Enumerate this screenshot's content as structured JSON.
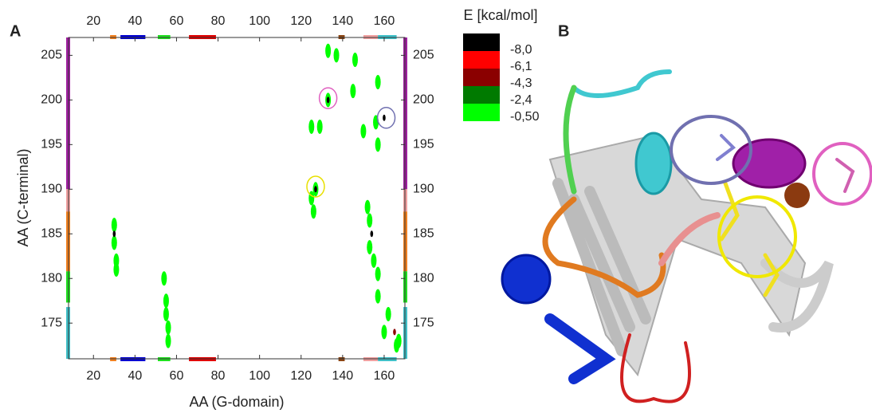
{
  "panel_a": "A",
  "panel_b": "B",
  "chart_data": {
    "type": "scatter",
    "xlabel": "AA (G-domain)",
    "ylabel": "AA (C-terminal)",
    "xlim": [
      8,
      170
    ],
    "ylim": [
      171,
      207
    ],
    "xticks": [
      20,
      40,
      60,
      80,
      100,
      120,
      140,
      160
    ],
    "yticks": [
      175,
      180,
      185,
      190,
      195,
      200,
      205
    ],
    "colorbar": {
      "title": "E [kcal/mol]",
      "levels": [
        {
          "value": -8.0,
          "label": "-8,0",
          "color": "#000000"
        },
        {
          "value": -6.1,
          "label": "-6,1",
          "color": "#ff0000"
        },
        {
          "value": -4.3,
          "label": "-4,3",
          "color": "#8b0000"
        },
        {
          "value": -2.4,
          "label": "-2,4",
          "color": "#007a00"
        },
        {
          "value": -0.5,
          "label": "-0,50",
          "color": "#00ff00"
        }
      ]
    },
    "points": {
      "x": [
        30,
        30,
        31,
        31,
        30,
        54,
        55,
        55,
        56,
        56,
        133,
        137,
        146,
        145,
        157,
        133,
        133,
        125,
        129,
        150,
        156,
        160,
        157,
        127,
        127,
        125,
        126,
        152,
        153,
        154,
        153,
        155,
        157,
        157,
        162,
        160,
        165,
        166,
        167
      ],
      "y": [
        186,
        184,
        182,
        181,
        185,
        180,
        177.5,
        176,
        174.5,
        173,
        205.5,
        205,
        204.5,
        201,
        202,
        200,
        200,
        197,
        197,
        196.5,
        197.5,
        198,
        195,
        190,
        190,
        189,
        187.5,
        188,
        186.5,
        185,
        183.5,
        182,
        180.5,
        178,
        176,
        174,
        174,
        172.5,
        173
      ],
      "E": [
        -0.5,
        -0.5,
        -0.5,
        -0.5,
        -8.0,
        -0.5,
        -0.5,
        -0.5,
        -0.5,
        -0.5,
        -0.5,
        -0.5,
        -0.5,
        -0.5,
        -0.5,
        -0.5,
        -8.0,
        -0.5,
        -0.5,
        -0.5,
        -0.5,
        -8.0,
        -0.5,
        -0.5,
        -8.0,
        -0.5,
        -0.5,
        -0.5,
        -0.5,
        -8.0,
        -0.5,
        -0.5,
        -0.5,
        -0.5,
        -0.5,
        -0.5,
        -4.3,
        -0.5,
        -0.5
      ]
    },
    "x_segments": [
      {
        "start": 28,
        "end": 31,
        "color": "#f08020"
      },
      {
        "start": 33,
        "end": 45,
        "color": "#0000d0"
      },
      {
        "start": 51,
        "end": 57,
        "color": "#20e020"
      },
      {
        "start": 66,
        "end": 79,
        "color": "#e00000"
      },
      {
        "start": 138,
        "end": 141,
        "color": "#8b4513"
      },
      {
        "start": 150,
        "end": 157,
        "color": "#f0a0a0"
      },
      {
        "start": 157,
        "end": 166,
        "color": "#40c0c8"
      }
    ],
    "y_segments": [
      {
        "start": 190,
        "end": 207,
        "color": "#a020a0"
      },
      {
        "start": 187.5,
        "end": 190,
        "color": "#f0a0a0"
      },
      {
        "start": 180.8,
        "end": 187.5,
        "color": "#f08020"
      },
      {
        "start": 177.3,
        "end": 180.8,
        "color": "#20e020"
      },
      {
        "start": 171,
        "end": 176.8,
        "color": "#40c0c8"
      }
    ],
    "highlights": [
      {
        "x": 133,
        "y": 200.2,
        "color": "#e060c0"
      },
      {
        "x": 127,
        "y": 190.3,
        "color": "#e8e000"
      },
      {
        "x": 161,
        "y": 198,
        "color": "#7070b0"
      }
    ]
  }
}
